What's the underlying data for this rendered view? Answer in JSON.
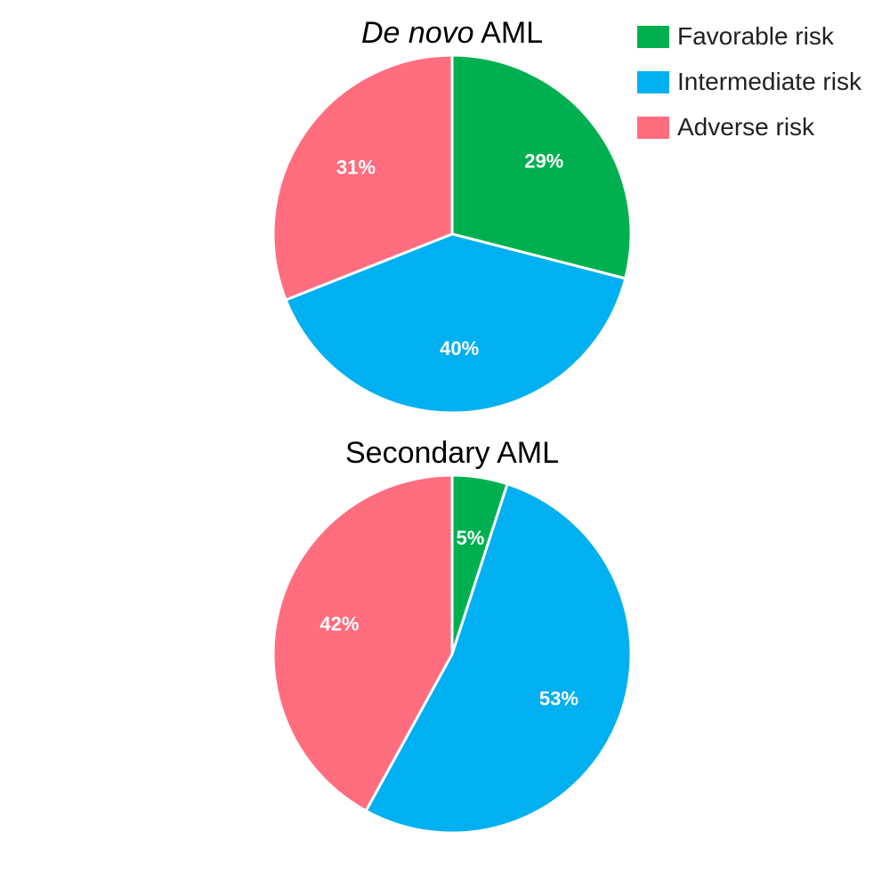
{
  "legend": {
    "items": [
      {
        "label": "Favorable risk",
        "color": "#00b050"
      },
      {
        "label": "Intermediate risk",
        "color": "#00b0f0"
      },
      {
        "label": "Adverse risk",
        "color": "#ff6d7f"
      }
    ]
  },
  "chart_data": [
    {
      "type": "pie",
      "title_italic": "De novo",
      "title_rest": " AML",
      "categories": [
        "Favorable risk",
        "Intermediate risk",
        "Adverse risk"
      ],
      "values": [
        29,
        40,
        31
      ],
      "labels": [
        "29%",
        "40%",
        "31%"
      ],
      "colors": [
        "#00b050",
        "#00b0f0",
        "#ff6d7f"
      ],
      "start": "12 o'clock, clockwise",
      "legend_position": "top-right"
    },
    {
      "type": "pie",
      "title": "Secondary AML",
      "categories": [
        "Favorable risk",
        "Intermediate risk",
        "Adverse risk"
      ],
      "values": [
        5,
        53,
        42
      ],
      "labels": [
        "5%",
        "53%",
        "42%"
      ],
      "colors": [
        "#00b050",
        "#00b0f0",
        "#ff6d7f"
      ],
      "start": "12 o'clock, clockwise"
    }
  ]
}
